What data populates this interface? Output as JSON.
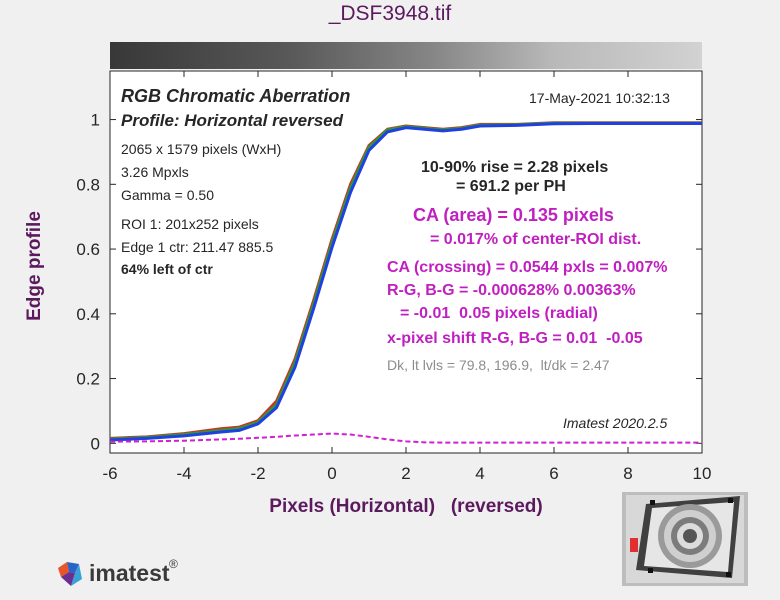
{
  "window_title": "_DSF3948.tif",
  "chart_data": {
    "type": "line",
    "title": "RGB Chromatic Aberration",
    "subtitle": "Profile: Horizontal reversed",
    "timestamp": "17-May-2021 10:32:13",
    "xlabel": "Pixels (Horizontal)   (reversed)",
    "ylabel": "Edge profile",
    "xlim": [
      -6,
      10
    ],
    "ylim": [
      -0.03,
      1.15
    ],
    "xticks": [
      -6,
      -4,
      -2,
      0,
      2,
      4,
      6,
      8,
      10
    ],
    "yticks": [
      0,
      0.2,
      0.4,
      0.6,
      0.8,
      1
    ],
    "xtick_labels": [
      "-6",
      "-4",
      "-2",
      "0",
      "2",
      "4",
      "6",
      "8",
      "10"
    ],
    "ytick_labels": [
      "0",
      "0.2",
      "0.4",
      "0.6",
      "0.8",
      "1"
    ],
    "grid": false,
    "x": [
      -6,
      -5,
      -4,
      -3,
      -2.5,
      -2,
      -1.5,
      -1,
      -0.5,
      0,
      0.5,
      1,
      1.5,
      2,
      2.5,
      3,
      3.5,
      4,
      5,
      6,
      7,
      8,
      9,
      10
    ],
    "series": [
      {
        "color": "#d03020",
        "values": [
          0.015,
          0.02,
          0.03,
          0.045,
          0.05,
          0.07,
          0.13,
          0.26,
          0.44,
          0.63,
          0.8,
          0.92,
          0.97,
          0.98,
          0.975,
          0.97,
          0.975,
          0.985,
          0.985,
          0.99,
          0.99,
          0.99,
          0.99,
          0.99
        ]
      },
      {
        "color": "#2a9a3a",
        "values": [
          0.013,
          0.018,
          0.027,
          0.04,
          0.046,
          0.065,
          0.12,
          0.25,
          0.43,
          0.62,
          0.79,
          0.915,
          0.968,
          0.978,
          0.973,
          0.968,
          0.973,
          0.983,
          0.984,
          0.989,
          0.989,
          0.989,
          0.989,
          0.989
        ]
      },
      {
        "color": "#2040e0",
        "values": [
          0.01,
          0.015,
          0.023,
          0.035,
          0.04,
          0.06,
          0.11,
          0.235,
          0.415,
          0.605,
          0.775,
          0.905,
          0.962,
          0.975,
          0.97,
          0.965,
          0.97,
          0.98,
          0.982,
          0.987,
          0.988,
          0.988,
          0.988,
          0.988
        ]
      },
      {
        "color": "#d020d0",
        "dashed": true,
        "values": [
          0.005,
          0.006,
          0.008,
          0.012,
          0.014,
          0.017,
          0.02,
          0.024,
          0.027,
          0.03,
          0.027,
          0.02,
          0.012,
          0.006,
          0.003,
          0.002,
          0.002,
          0.002,
          0.002,
          0.002,
          0.002,
          0.002,
          0.002,
          0.002
        ]
      }
    ]
  },
  "info": {
    "size": "2065 x 1579 pixels (WxH)",
    "mpxls": "3.26 Mpxls",
    "gamma": "Gamma = 0.50",
    "roi": "ROI 1: 201x252 pixels",
    "edge_ctr": "Edge 1 ctr: 211.47  885.5",
    "pos": "64% left of ctr"
  },
  "results": {
    "rise": "10-90% rise = 2.28 pixels",
    "per_ph": "= 691.2 per PH",
    "ca_area": "CA (area) = 0.135 pixels",
    "ca_area_pct": "= 0.017% of center-ROI dist.",
    "ca_crossing": "CA (crossing) = 0.0544 pxls = 0.007%",
    "rg_bg": "R-G, B-G = -0.000628%  0.00363%",
    "rg_bg_px": "= -0.01  0.05 pixels (radial)",
    "xshift": "x-pixel shift R-G, B-G = 0.01  -0.05",
    "levels": "Dk, lt lvls = 79.8, 196.9,  lt/dk = 2.47",
    "version": "Imatest 2020.2.5"
  },
  "colors": {
    "axis_label": "#5b1a5e",
    "magenta": "#c020c0",
    "dark_text": "#262626",
    "gray_text": "#8c8c8c"
  },
  "logo": {
    "text": "imatest",
    "mark": "®",
    "icon": "imatest-logo-icon"
  },
  "thumbnail": {
    "icon": "test-chart-thumbnail"
  }
}
